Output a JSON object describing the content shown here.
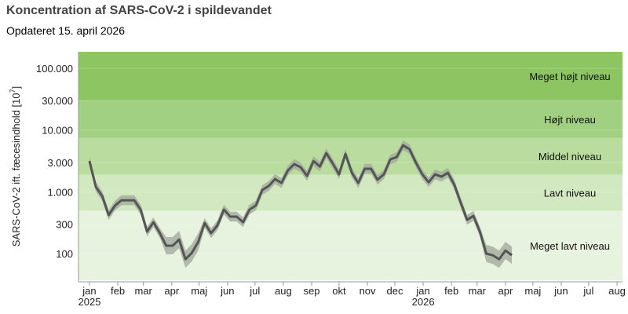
{
  "chart_data": {
    "type": "line",
    "title": "Koncentration af SARS-CoV-2 i spildevandet",
    "subtitle": "Opdateret 15. april 2026",
    "xlabel": "",
    "ylabel": "SARS-CoV-2 ift. fæcesindhold [10",
    "ylabel_exponent": "7",
    "ylabel_close": "]",
    "y_scale": "log",
    "ylim": [
      37,
      185000
    ],
    "xlim": [
      "2024-12-20",
      "2026-08-07"
    ],
    "grid": false,
    "y_ticks": [
      {
        "value": 100000,
        "label": "100.000"
      },
      {
        "value": 30000,
        "label": "30.000"
      },
      {
        "value": 10000,
        "label": "10.000"
      },
      {
        "value": 3000,
        "label": "3.000"
      },
      {
        "value": 1000,
        "label": "1.000"
      },
      {
        "value": 300,
        "label": "300"
      },
      {
        "value": 100,
        "label": "100"
      }
    ],
    "x_ticks": [
      {
        "date": "2025-01-01",
        "label": "jan",
        "year": "2025"
      },
      {
        "date": "2025-02-01",
        "label": "feb"
      },
      {
        "date": "2025-03-01",
        "label": "mar"
      },
      {
        "date": "2025-04-01",
        "label": "apr"
      },
      {
        "date": "2025-05-01",
        "label": "maj"
      },
      {
        "date": "2025-06-01",
        "label": "jun"
      },
      {
        "date": "2025-07-01",
        "label": "jul"
      },
      {
        "date": "2025-08-01",
        "label": "aug"
      },
      {
        "date": "2025-09-01",
        "label": "sep"
      },
      {
        "date": "2025-10-01",
        "label": "okt"
      },
      {
        "date": "2025-11-01",
        "label": "nov"
      },
      {
        "date": "2025-12-01",
        "label": "dec"
      },
      {
        "date": "2026-01-01",
        "label": "jan",
        "year": "2026"
      },
      {
        "date": "2026-02-01",
        "label": "feb"
      },
      {
        "date": "2026-03-01",
        "label": "mar"
      },
      {
        "date": "2026-04-01",
        "label": "apr"
      },
      {
        "date": "2026-05-01",
        "label": "maj"
      },
      {
        "date": "2026-06-01",
        "label": "jun"
      },
      {
        "date": "2026-07-01",
        "label": "jul"
      },
      {
        "date": "2026-08-01",
        "label": "aug"
      }
    ],
    "levels": [
      {
        "label": "Meget højt niveau",
        "from": 30000,
        "to": 185000,
        "color": "#8dc563"
      },
      {
        "label": "Højt niveau",
        "from": 7500,
        "to": 30000,
        "color": "#a2d082"
      },
      {
        "label": "Middel niveau",
        "from": 1900,
        "to": 7500,
        "color": "#badd9f"
      },
      {
        "label": "Lavt niveau",
        "from": 490,
        "to": 1900,
        "color": "#d2e8c0"
      },
      {
        "label": "Meget lavt niveau",
        "from": 37,
        "to": 490,
        "color": "#e8f3df"
      }
    ],
    "series": [
      {
        "x_start": "2025-01-01",
        "x_interval": "weekly",
        "line_color": "#555555",
        "band_color": "#a3ab9c",
        "band_relative_width": 0.2,
        "values": [
          3150,
          1200,
          850,
          420,
          600,
          730,
          730,
          730,
          515,
          227,
          322,
          214,
          134,
          134,
          169,
          81,
          103,
          155,
          313,
          214,
          287,
          515,
          396,
          396,
          322,
          515,
          600,
          1070,
          1240,
          1610,
          1390,
          2220,
          2810,
          2500,
          1810,
          3150,
          2570,
          4230,
          2890,
          1920,
          4110,
          2040,
          1390,
          2360,
          2360,
          1570,
          1920,
          3350,
          3650,
          5670,
          4900,
          2980,
          1920,
          1430,
          1920,
          1760,
          2040,
          1310,
          670,
          352,
          407,
          227,
          100,
          94,
          81,
          112,
          94
        ]
      }
    ]
  }
}
